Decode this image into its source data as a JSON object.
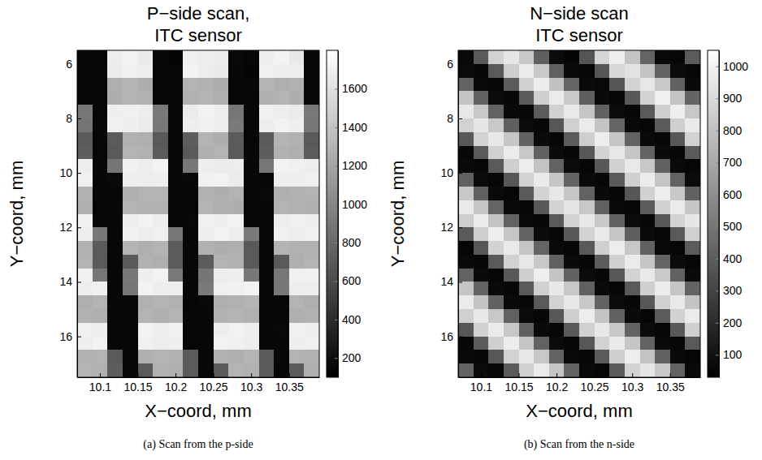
{
  "chart_data": [
    {
      "type": "heatmap",
      "title": [
        "P−side scan,",
        "ITC sensor"
      ],
      "caption": "(a) Scan from the p-side",
      "x_label": "X−coord, mm",
      "y_label": "Y−coord, mm",
      "color": "gray",
      "xlim": [
        10.07,
        10.39
      ],
      "ylim": [
        17.5,
        5.5
      ],
      "xticks": [
        10.1,
        10.15,
        10.2,
        10.25,
        10.3,
        10.35
      ],
      "yticks": [
        6,
        8,
        10,
        12,
        14,
        16
      ],
      "zlim": [
        100,
        1800
      ],
      "zticks": [
        200,
        400,
        600,
        800,
        1000,
        1200,
        1400,
        1600
      ],
      "x": [
        10.08,
        10.1,
        10.12,
        10.14,
        10.16,
        10.18,
        10.2,
        10.22,
        10.24,
        10.26,
        10.28,
        10.3,
        10.32,
        10.34,
        10.36,
        10.38
      ],
      "y": [
        5.75,
        6.25,
        6.75,
        7.25,
        7.75,
        8.25,
        8.75,
        9.25,
        9.75,
        10.25,
        10.75,
        11.25,
        11.75,
        12.25,
        12.75,
        13.25,
        13.75,
        14.25,
        14.75,
        15.25,
        15.75,
        16.25,
        16.75,
        17.25
      ],
      "z": [
        [
          150,
          140,
          1680,
          1710,
          1660,
          145,
          135,
          1700,
          1690,
          1670,
          155,
          140,
          1690,
          1720,
          1650,
          150
        ],
        [
          145,
          150,
          1670,
          1700,
          1690,
          140,
          145,
          1710,
          1680,
          1660,
          150,
          135,
          1700,
          1690,
          1680,
          145
        ],
        [
          150,
          140,
          1270,
          1300,
          1260,
          145,
          150,
          1290,
          1280,
          1250,
          140,
          145,
          1300,
          1270,
          1280,
          150
        ],
        [
          140,
          145,
          1260,
          1290,
          1280,
          150,
          140,
          1280,
          1300,
          1270,
          145,
          150,
          1270,
          1290,
          1260,
          140
        ],
        [
          900,
          140,
          1690,
          1700,
          1680,
          910,
          145,
          1670,
          1710,
          1690,
          890,
          150,
          1700,
          1680,
          1670,
          905
        ],
        [
          880,
          150,
          1700,
          1690,
          1670,
          900,
          140,
          1690,
          1700,
          1680,
          910,
          145,
          1680,
          1710,
          1690,
          895
        ],
        [
          700,
          145,
          710,
          1280,
          1270,
          690,
          150,
          720,
          1290,
          1260,
          705,
          140,
          700,
          1300,
          1280,
          695
        ],
        [
          720,
          140,
          690,
          1290,
          1280,
          710,
          145,
          700,
          1270,
          1290,
          700,
          150,
          715,
          1280,
          1270,
          705
        ],
        [
          1690,
          150,
          880,
          1700,
          1680,
          1710,
          140,
          900,
          1690,
          1670,
          1680,
          145,
          890,
          1710,
          1700,
          1690
        ],
        [
          1700,
          145,
          160,
          1690,
          1680,
          1690,
          150,
          155,
          1700,
          1710,
          1670,
          140,
          150,
          1680,
          1690,
          1700
        ],
        [
          1280,
          150,
          145,
          1270,
          1290,
          1300,
          140,
          150,
          1280,
          1260,
          1290,
          145,
          155,
          1270,
          1280,
          1290
        ],
        [
          1270,
          140,
          150,
          1290,
          1280,
          1280,
          145,
          140,
          1300,
          1270,
          1260,
          150,
          145,
          1290,
          1280,
          1270
        ],
        [
          1700,
          145,
          150,
          1690,
          1710,
          1680,
          140,
          155,
          1700,
          1690,
          1710,
          150,
          145,
          1680,
          1700,
          1690
        ],
        [
          1690,
          900,
          150,
          1700,
          1680,
          1700,
          890,
          145,
          1690,
          1710,
          1680,
          910,
          150,
          1700,
          1690,
          1700
        ],
        [
          1280,
          700,
          145,
          1290,
          1270,
          1290,
          710,
          150,
          1280,
          1260,
          1270,
          695,
          140,
          1290,
          1280,
          1280
        ],
        [
          1290,
          690,
          150,
          700,
          1280,
          1270,
          705,
          145,
          715,
          1290,
          1280,
          700,
          150,
          690,
          1270,
          1290
        ],
        [
          1700,
          890,
          145,
          900,
          1690,
          1710,
          905,
          150,
          880,
          1680,
          1690,
          900,
          140,
          895,
          1700,
          1700
        ],
        [
          1690,
          1700,
          150,
          890,
          1710,
          1680,
          1690,
          145,
          910,
          1700,
          1700,
          1710,
          150,
          900,
          1680,
          1690
        ],
        [
          1270,
          1290,
          145,
          150,
          1280,
          1290,
          1280,
          140,
          155,
          1270,
          1280,
          1300,
          150,
          145,
          1290,
          1270
        ],
        [
          1280,
          1270,
          150,
          145,
          1290,
          1270,
          1290,
          145,
          150,
          1280,
          1290,
          1280,
          140,
          150,
          1270,
          1280
        ],
        [
          1700,
          1690,
          145,
          150,
          1710,
          1690,
          1700,
          150,
          140,
          1680,
          1710,
          1690,
          145,
          155,
          1700,
          1690
        ],
        [
          1690,
          1710,
          150,
          145,
          1700,
          1680,
          1690,
          140,
          150,
          1710,
          1700,
          1680,
          150,
          145,
          1690,
          1700
        ],
        [
          1280,
          1290,
          700,
          150,
          1270,
          1290,
          1280,
          710,
          145,
          1280,
          1270,
          1300,
          690,
          150,
          1290,
          1280
        ],
        [
          1290,
          1280,
          720,
          145,
          700,
          1280,
          1270,
          705,
          150,
          690,
          1290,
          1280,
          700,
          140,
          710,
          1270
        ]
      ]
    },
    {
      "type": "heatmap",
      "title": [
        "N−side scan",
        "ITC sensor"
      ],
      "caption": "(b) Scan from the n-side",
      "x_label": "X−coord, mm",
      "y_label": "Y−coord, mm",
      "color": "gray",
      "xlim": [
        10.07,
        10.39
      ],
      "ylim": [
        17.5,
        5.5
      ],
      "xticks": [
        10.1,
        10.15,
        10.2,
        10.25,
        10.3,
        10.35
      ],
      "yticks": [
        6,
        8,
        10,
        12,
        14,
        16
      ],
      "zlim": [
        30,
        1050
      ],
      "zticks": [
        100,
        200,
        300,
        400,
        500,
        600,
        700,
        800,
        900,
        1000
      ],
      "x": [
        10.08,
        10.1,
        10.12,
        10.14,
        10.16,
        10.18,
        10.2,
        10.22,
        10.24,
        10.26,
        10.28,
        10.3,
        10.32,
        10.34,
        10.36,
        10.38
      ],
      "y": [
        5.75,
        6.25,
        6.75,
        7.25,
        7.75,
        8.25,
        8.75,
        9.25,
        9.75,
        10.25,
        10.75,
        11.25,
        11.75,
        12.25,
        12.75,
        13.25,
        13.75,
        14.25,
        14.75,
        15.25,
        15.75,
        16.25,
        16.75,
        17.25
      ],
      "z": [
        [
          60,
          390,
          870,
          950,
          830,
          410,
          75,
          50,
          370,
          880,
          985,
          810,
          430,
          65,
          55,
          395
        ],
        [
          72,
          58,
          385,
          850,
          970,
          835,
          415,
          68,
          52,
          375,
          890,
          940,
          815,
          425,
          74,
          57
        ],
        [
          425,
          66,
          54,
          395,
          865,
          975,
          805,
          430,
          71,
          60,
          372,
          875,
          955,
          828,
          412,
          69
        ],
        [
          815,
          418,
          73,
          56,
          388,
          858,
          968,
          832,
          405,
          67,
          53,
          381,
          872,
          990,
          812,
          427
        ],
        [
          955,
          826,
          422,
          69,
          57,
          392,
          866,
          962,
          818,
          416,
          72,
          59,
          386,
          853,
          980,
          824
        ],
        [
          868,
          948,
          829,
          411,
          74,
          56,
          377,
          862,
          972,
          815,
          428,
          66,
          54,
          389,
          857,
          965
        ],
        [
          383,
          871,
          958,
          821,
          417,
          70,
          55,
          394,
          855,
          983,
          817,
          423,
          68,
          58,
          376,
          869
        ],
        [
          57,
          386,
          864,
          970,
          826,
          419,
          71,
          53,
          379,
          873,
          952,
          822,
          427,
          69,
          56,
          388
        ],
        [
          68,
          56,
          391,
          857,
          977,
          811,
          421,
          73,
          55,
          383,
          866,
          961,
          830,
          414,
          70,
          54
        ],
        [
          418,
          72,
          57,
          376,
          870,
          966,
          823,
          426,
          67,
          58,
          390,
          859,
          974,
          819,
          421,
          72
        ],
        [
          826,
          413,
          68,
          54,
          384,
          869,
          955,
          818,
          423,
          71,
          56,
          374,
          866,
          979,
          829,
          416
        ],
        [
          962,
          817,
          429,
          71,
          58,
          381,
          874,
          947,
          827,
          412,
          69,
          55,
          393,
          861,
          968,
          821
        ],
        [
          855,
          973,
          812,
          424,
          68,
          57,
          389,
          868,
          959,
          831,
          418,
          73,
          56,
          378,
          872,
          951
        ],
        [
          390,
          858,
          981,
          816,
          425,
          73,
          54,
          382,
          870,
          964,
          823,
          410,
          71,
          57,
          385,
          863
        ],
        [
          54,
          379,
          872,
          963,
          819,
          428,
          69,
          58,
          387,
          856,
          978,
          825,
          418,
          67,
          53,
          392
        ],
        [
          71,
          57,
          388,
          869,
          952,
          828,
          413,
          70,
          54,
          392,
          861,
          969,
          816,
          429,
          73,
          56
        ],
        [
          423,
          68,
          55,
          382,
          857,
          981,
          814,
          419,
          72,
          57,
          379,
          868,
          962,
          833,
          416,
          68
        ],
        [
          818,
          426,
          71,
          58,
          391,
          864,
          957,
          827,
          413,
          69,
          55,
          386,
          859,
          975,
          822,
          424
        ],
        [
          968,
          814,
          417,
          66,
          55,
          386,
          871,
          954,
          829,
          424,
          73,
          57,
          381,
          867,
          961,
          815
        ],
        [
          861,
          957,
          825,
          418,
          72,
          58,
          383,
          856,
          976,
          813,
          419,
          68,
          53,
          394,
          865,
          970
        ],
        [
          377,
          866,
          972,
          824,
          413,
          68,
          57,
          387,
          862,
          957,
          828,
          426,
          72,
          55,
          383,
          858
        ],
        [
          58,
          392,
          857,
          975,
          817,
          422,
          73,
          56,
          376,
          869,
          966,
          819,
          421,
          70,
          58,
          385
        ],
        [
          69,
          53,
          377,
          871,
          958,
          824,
          427,
          66,
          59,
          388,
          857,
          983,
          812,
          417,
          71,
          54
        ],
        [
          427,
          73,
          56,
          389,
          863,
          969,
          817,
          424,
          68,
          54,
          386,
          872,
          951,
          826,
          423,
          71
        ]
      ]
    }
  ]
}
